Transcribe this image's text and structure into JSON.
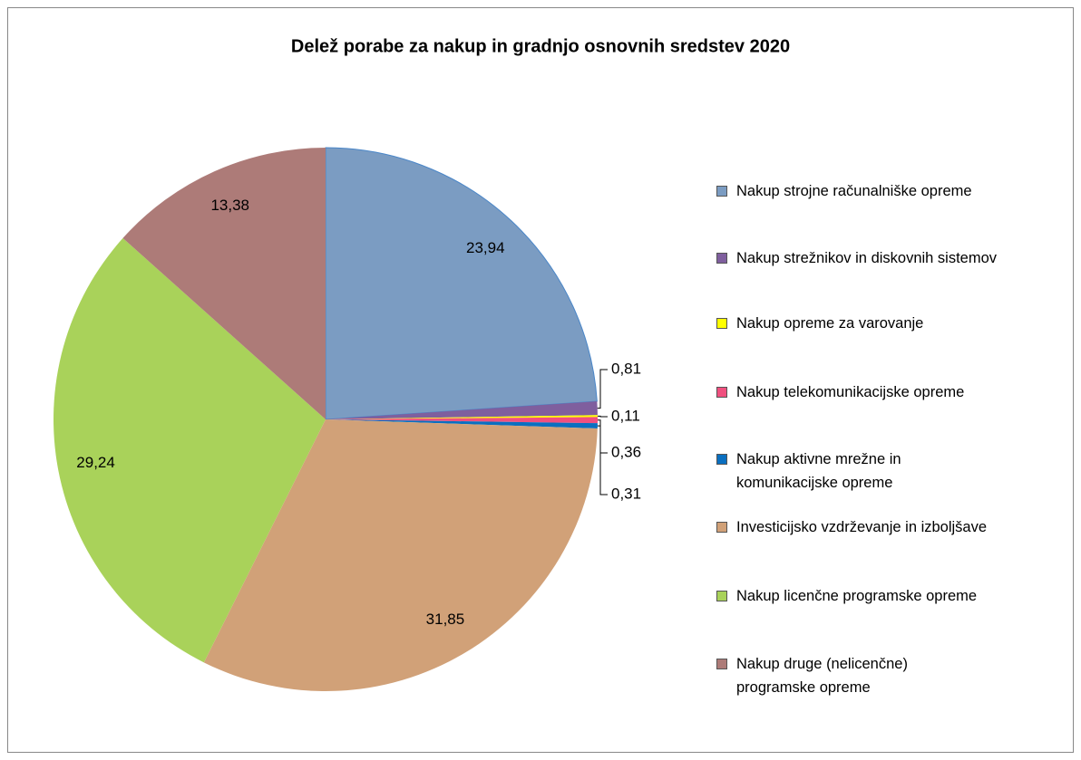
{
  "chart_data": {
    "type": "pie",
    "title": "Delež porabe za nakup in gradnjo osnovnih sredstev 2020",
    "categories": [
      "Nakup strojne računalniške opreme",
      "Nakup strežnikov in diskovnih sistemov",
      "Nakup opreme za varovanje",
      "Nakup telekomunikacijske opreme",
      "Nakup aktivne mrežne in komunikacijske opreme",
      "Investicijsko vzdrževanje in izboljšave",
      "Nakup licenčne programske opreme",
      "Nakup druge (nelicenčne) programske opreme"
    ],
    "values": [
      23.94,
      0.81,
      0.11,
      0.36,
      0.31,
      31.85,
      29.24,
      13.38
    ],
    "value_labels": [
      "23,94",
      "0,81",
      "0,11",
      "0,36",
      "0,31",
      "31,85",
      "29,24",
      "13,38"
    ],
    "colors": [
      "#7b9cc2",
      "#7f5f9e",
      "#ffff00",
      "#f0507f",
      "#0a6fc0",
      "#d1a178",
      "#a9d25a",
      "#ad7b78"
    ],
    "legend": "right"
  }
}
